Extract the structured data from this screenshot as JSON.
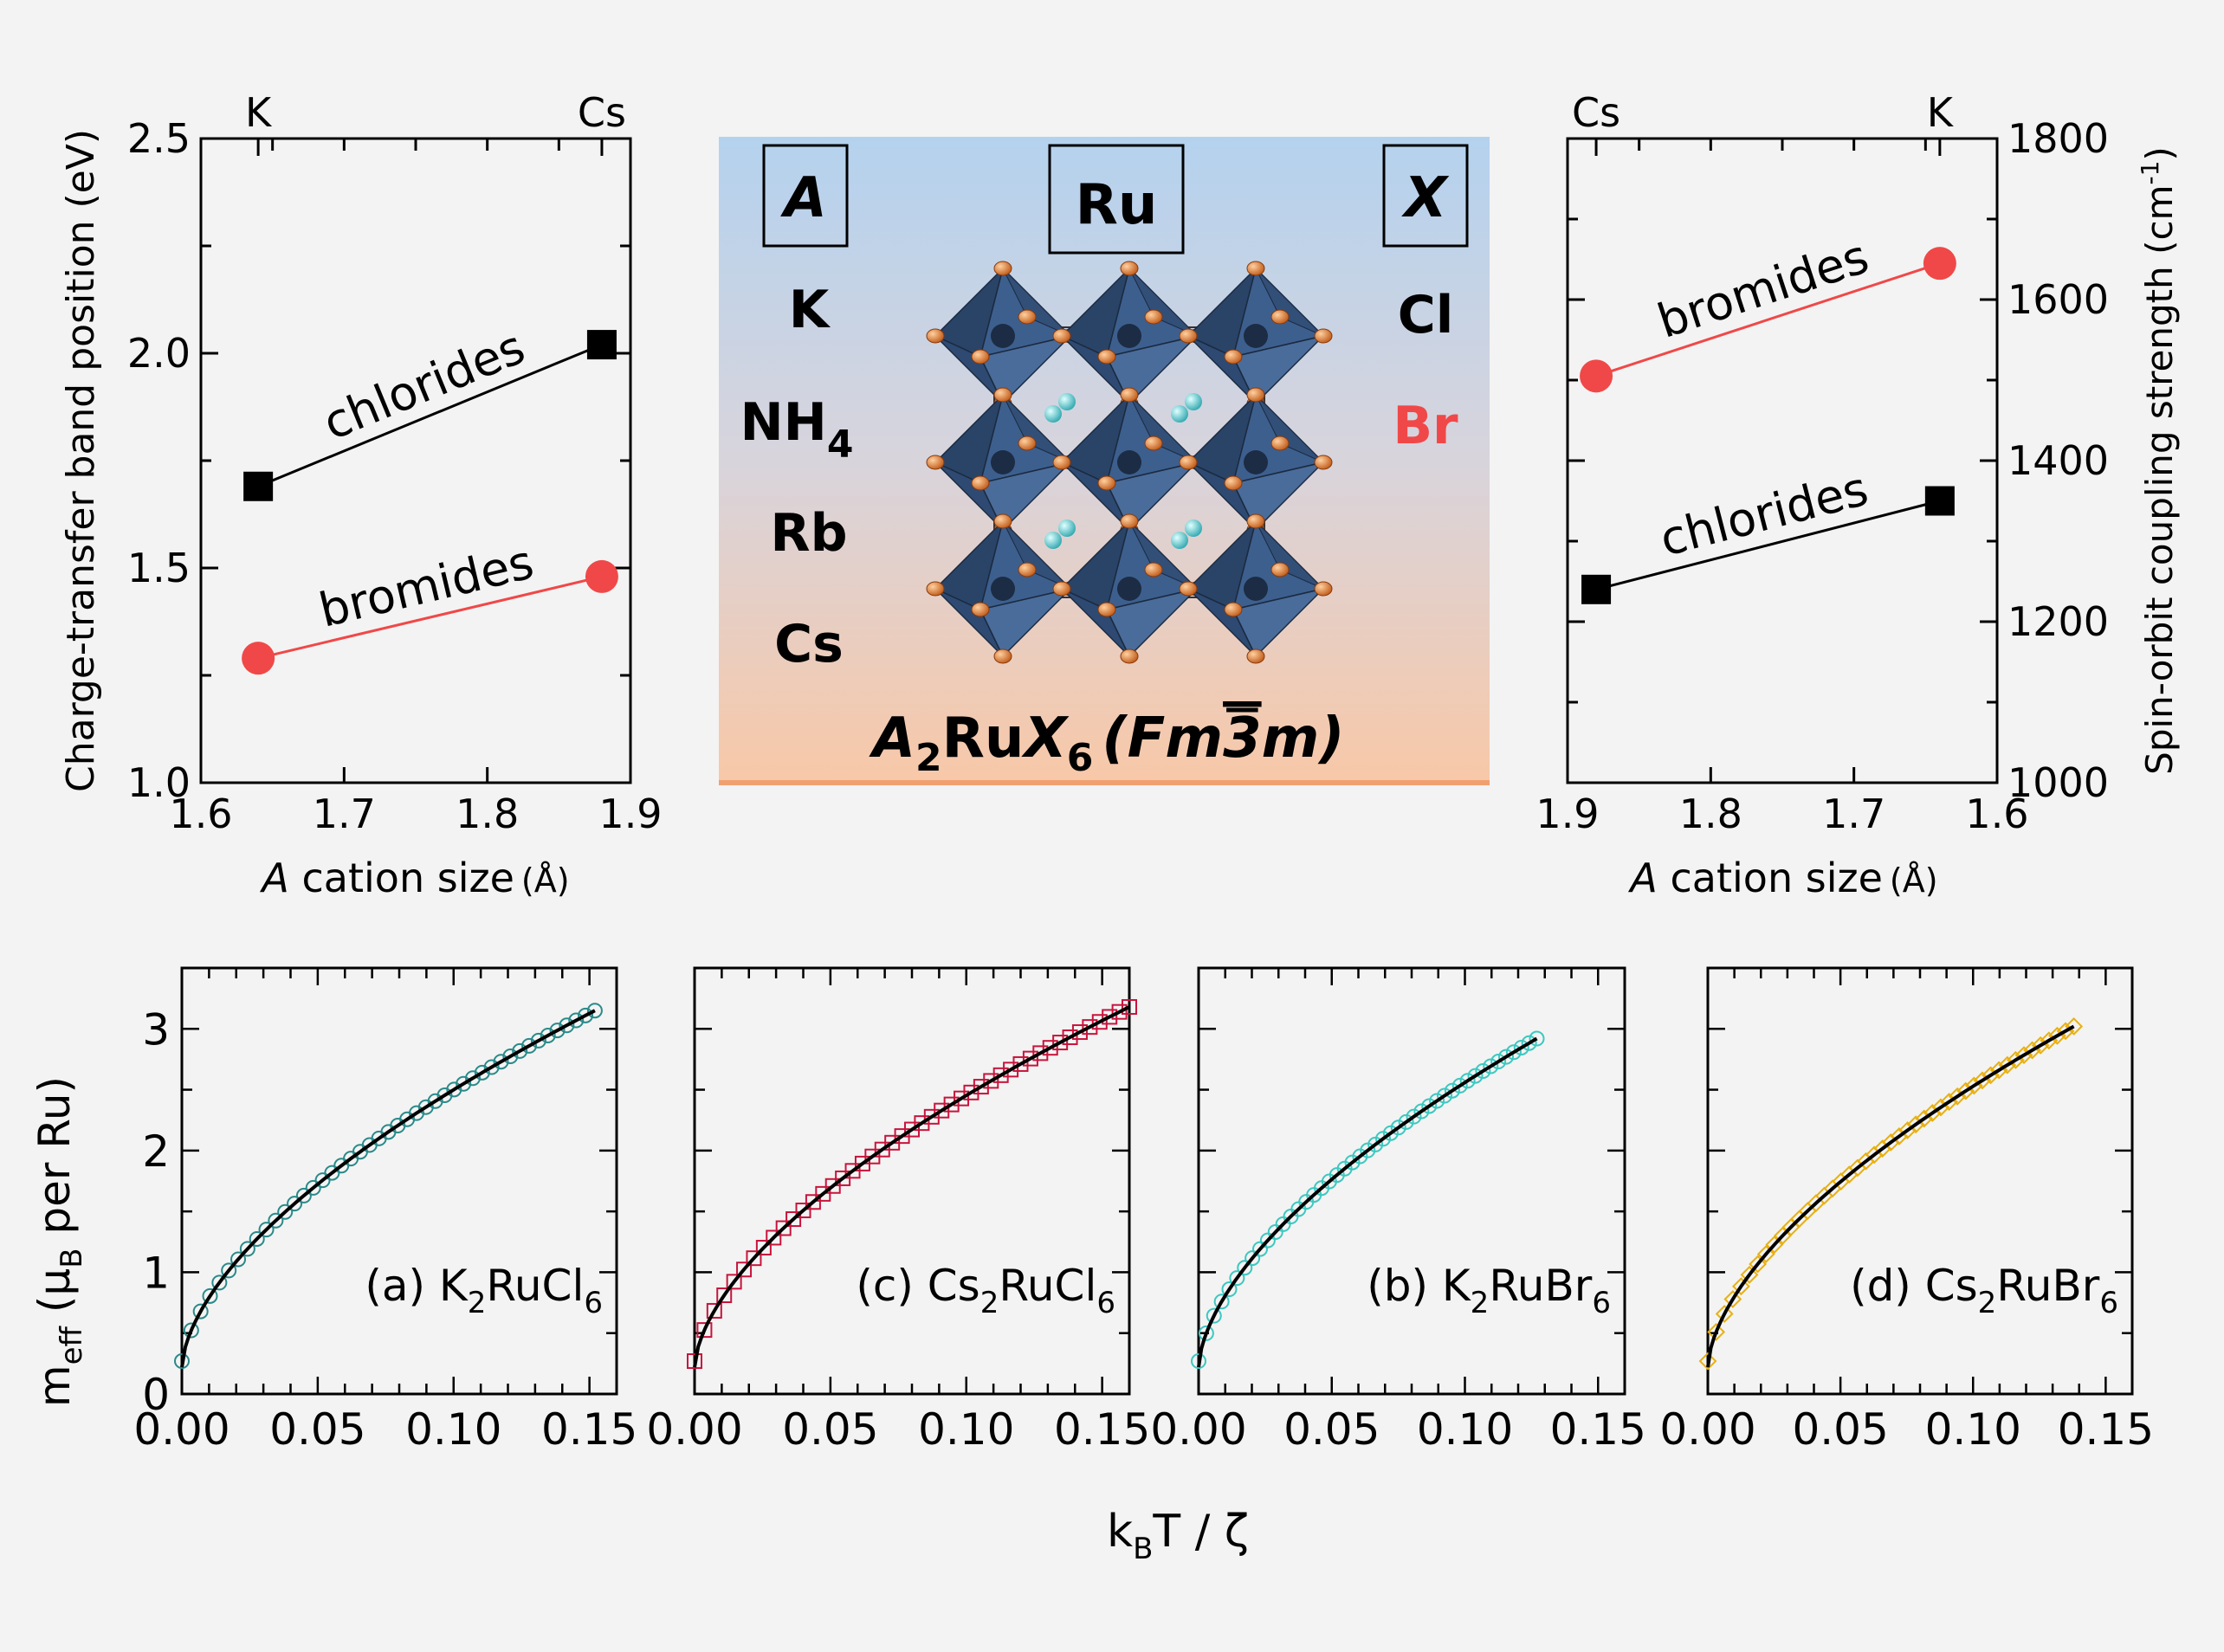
{
  "chart_data": [
    {
      "id": "charge-transfer",
      "type": "scatter",
      "xlabel_italic": "A",
      "xlabel_rest": " cation size",
      "xlabel_unit": "(Å)",
      "ylabel": "Charge-transfer band position (eV)",
      "xlim": [
        1.6,
        1.9
      ],
      "ylim": [
        1.0,
        2.5
      ],
      "x_ticks": [
        "1.6",
        "1.7",
        "1.8",
        "1.9"
      ],
      "y_ticks": [
        "1.0",
        "1.5",
        "2.0",
        "2.5"
      ],
      "top_labels": [
        {
          "text": "K",
          "x": 1.64
        },
        {
          "text": "Cs",
          "x": 1.88
        }
      ],
      "series": [
        {
          "name": "chlorides",
          "marker": "square",
          "color": "#000000",
          "x": [
            1.64,
            1.88
          ],
          "y": [
            1.69,
            2.02
          ]
        },
        {
          "name": "bromides",
          "marker": "circle",
          "color": "#f04848",
          "x": [
            1.64,
            1.88
          ],
          "y": [
            1.29,
            1.48
          ]
        }
      ]
    },
    {
      "id": "spin-orbit",
      "type": "scatter",
      "xlabel_italic": "A",
      "xlabel_rest": " cation size",
      "xlabel_unit": "(Å)",
      "ylabel": "Spin-orbit coupling strength (cm",
      "ylabel_sup": "-1",
      "ylabel_end": ")",
      "xlim": [
        1.9,
        1.6
      ],
      "ylim": [
        1000,
        1800
      ],
      "x_ticks": [
        "1.9",
        "1.8",
        "1.7",
        "1.6"
      ],
      "y_ticks": [
        "1000",
        "1200",
        "1400",
        "1600",
        "1800"
      ],
      "top_labels": [
        {
          "text": "Cs",
          "x": 1.88
        },
        {
          "text": "K",
          "x": 1.64
        }
      ],
      "series": [
        {
          "name": "bromides",
          "marker": "circle",
          "color": "#f04848",
          "x": [
            1.88,
            1.64
          ],
          "y": [
            1505,
            1645
          ]
        },
        {
          "name": "chlorides",
          "marker": "square",
          "color": "#000000",
          "x": [
            1.88,
            1.64
          ],
          "y": [
            1240,
            1350
          ]
        }
      ]
    },
    {
      "id": "meff-panels",
      "type": "scatter",
      "ylabel": "m",
      "ylabel_sub1": "eff",
      "ylabel_mid": " (μ",
      "ylabel_sub2": "B",
      "ylabel_end": " per Ru)",
      "xlabel": "k",
      "xlabel_sub": "B",
      "xlabel_end": "T / ζ",
      "xlim": [
        0,
        0.16
      ],
      "ylim": [
        0,
        3.5
      ],
      "x_ticks": [
        "0.00",
        "0.05",
        "0.10",
        "0.15"
      ],
      "y_ticks": [
        "0",
        "1",
        "2",
        "3"
      ],
      "panels": [
        {
          "label": "(a) K",
          "sub1": "2",
          "mid": "RuCl",
          "sub2": "6",
          "marker": "circle",
          "color": "#2a8a8a",
          "xmax": 0.152,
          "ymax": 3.15
        },
        {
          "label": "(c) Cs",
          "sub1": "2",
          "mid": "RuCl",
          "sub2": "6",
          "marker": "square",
          "color": "#c8143c",
          "xmax": 0.16,
          "ymax": 3.18
        },
        {
          "label": "(b) K",
          "sub1": "2",
          "mid": "RuBr",
          "sub2": "6",
          "marker": "circle",
          "color": "#3cc8c0",
          "xmax": 0.127,
          "ymax": 2.92
        },
        {
          "label": "(d) Cs",
          "sub1": "2",
          "mid": "RuBr",
          "sub2": "6",
          "marker": "diamond",
          "color": "#e8b010",
          "xmax": 0.138,
          "ymax": 3.02
        }
      ]
    }
  ],
  "structure": {
    "col_a": "A",
    "col_ru": "Ru",
    "col_x": "X",
    "a_cations": [
      "K",
      "NH",
      "Rb",
      "Cs"
    ],
    "nh4_sub": "4",
    "halides": [
      "Cl",
      "Br"
    ],
    "formula_a": "A",
    "formula_sub1": "2",
    "formula_ru": "Ru",
    "formula_x": "X",
    "formula_sub2": "6",
    "formula_space": "(Fm",
    "formula_three": "3",
    "formula_m": "m)",
    "colors": {
      "top": "#b4d2ee",
      "bottom": "#f8c8a8",
      "octahedron": "#33507a",
      "ligand": "#e07a30",
      "cation": "#5ad0d0"
    }
  }
}
